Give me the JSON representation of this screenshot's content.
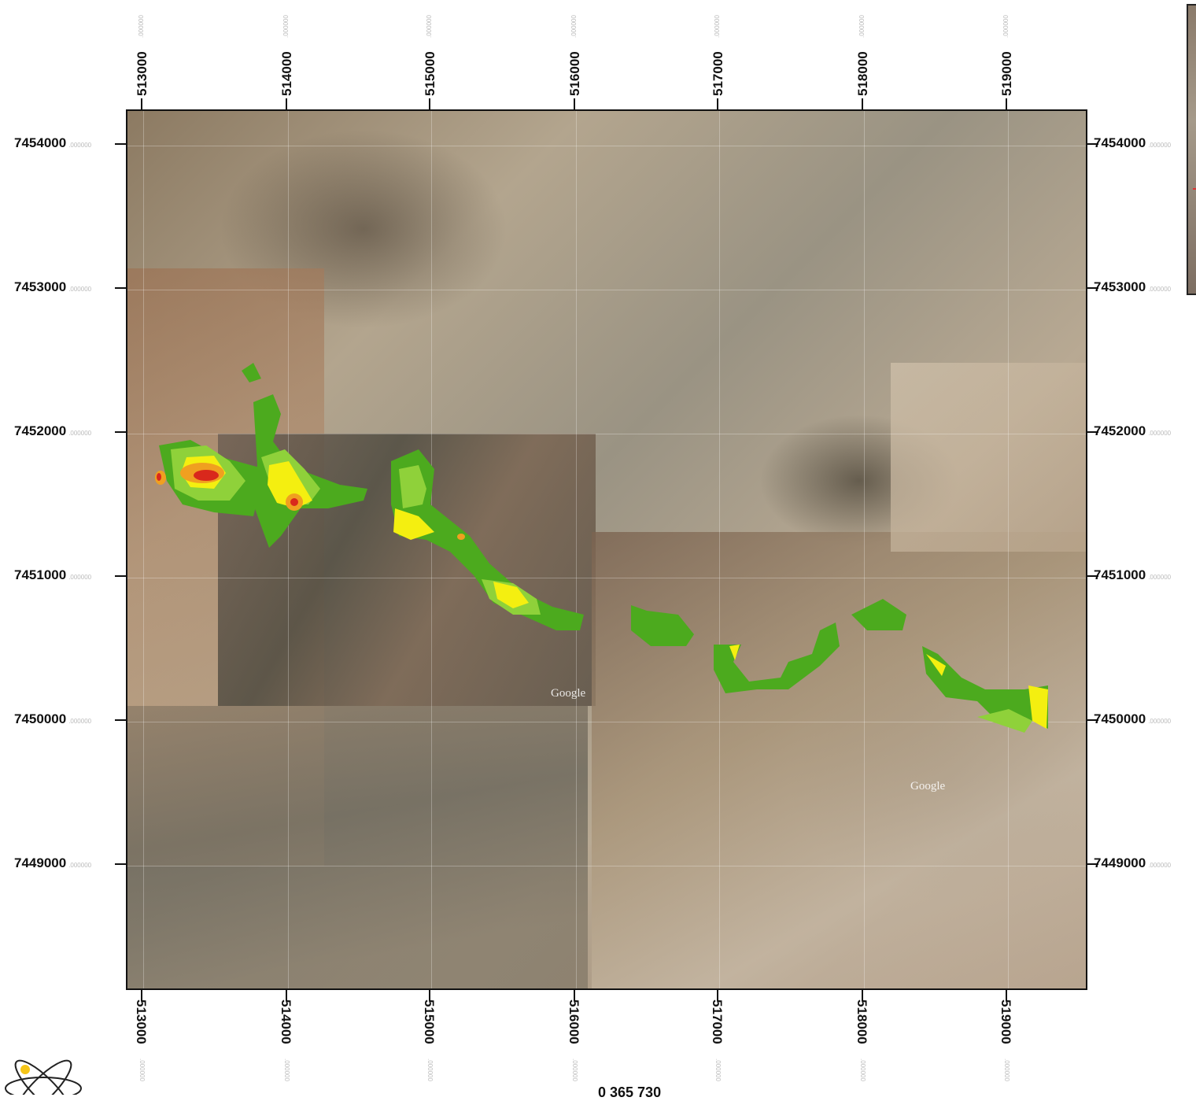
{
  "map": {
    "x_ticks": [
      "513000",
      "514000",
      "515000",
      "516000",
      "517000",
      "518000",
      "519000"
    ],
    "y_ticks": [
      "7454000",
      "7453000",
      "7452000",
      "7451000",
      "7450000",
      "7449000"
    ],
    "tick_suffix": ".000000",
    "watermarks": [
      "Google",
      "Google"
    ],
    "anomaly_colors": {
      "low": "#4caa1e",
      "medium_low": "#8fd13a",
      "medium": "#f4ef10",
      "high": "#f0a020",
      "very_high": "#d9281c"
    }
  },
  "scale_bar": {
    "label": "0    365    730"
  }
}
